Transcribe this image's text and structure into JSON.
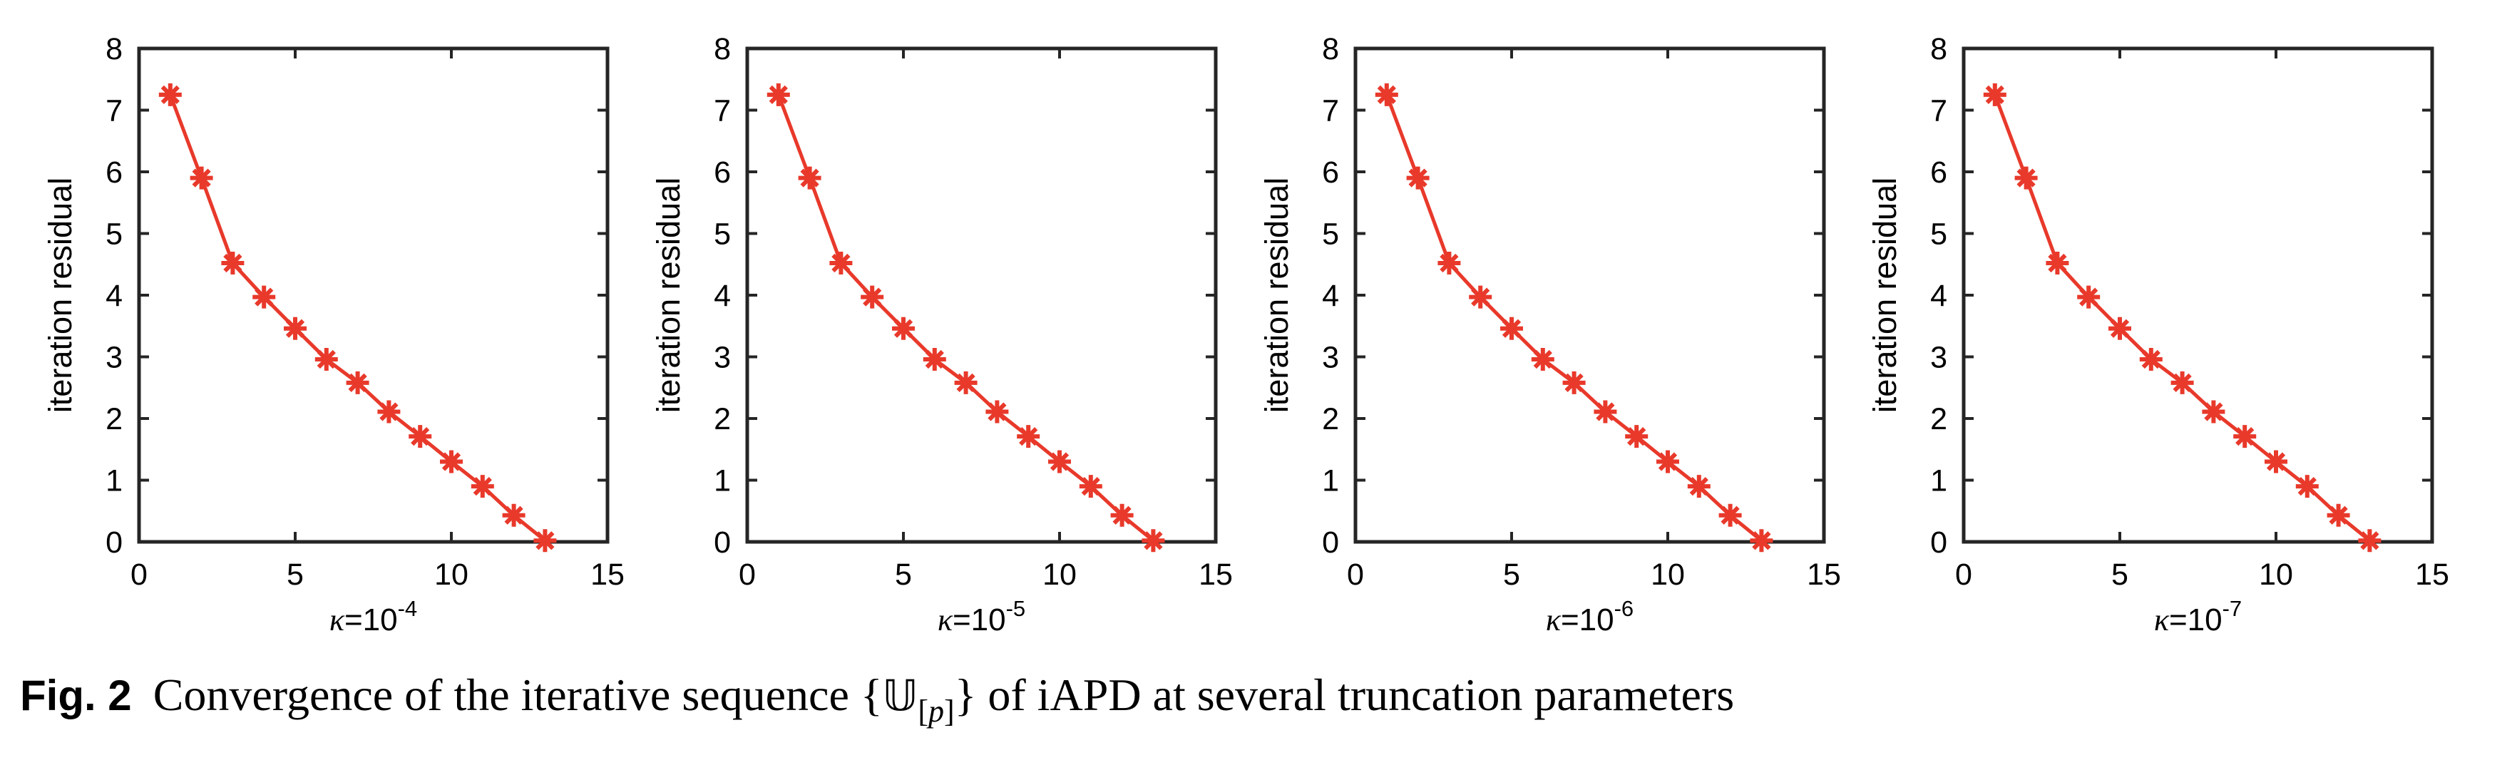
{
  "figure": {
    "caption": {
      "label": "Fig. 2",
      "part1": "Convergence of the iterative sequence {",
      "u_char": "𝕌",
      "sub_open": "[",
      "sub_p": "p",
      "sub_close": "]",
      "part2": "} of iAPD at several truncation parameters"
    }
  },
  "chart_data": {
    "type": "line",
    "title": "",
    "ylabel": "iteration residual",
    "x": [
      1,
      2,
      3,
      4,
      5,
      6,
      7,
      8,
      9,
      10,
      11,
      12,
      13
    ],
    "series": [
      {
        "name": "iteration residual",
        "values": [
          7.25,
          5.9,
          4.52,
          3.97,
          3.46,
          2.96,
          2.58,
          2.11,
          1.71,
          1.3,
          0.9,
          0.43,
          0.02
        ]
      }
    ],
    "xlim": [
      0,
      15
    ],
    "ylim": [
      0,
      8
    ],
    "xticks": [
      0,
      5,
      10,
      15
    ],
    "yticks": [
      0,
      1,
      2,
      3,
      4,
      5,
      6,
      7,
      8
    ],
    "grid": false,
    "legend": "none",
    "marker": "asterisk",
    "series_color": "#e8392b",
    "axis_color": "#252525",
    "text_color": "#000000",
    "subplots": [
      {
        "id": "kappa-1e-4",
        "kappa": "κ",
        "base": "=10",
        "exp": "-4"
      },
      {
        "id": "kappa-1e-5",
        "kappa": "κ",
        "base": "=10",
        "exp": "-5"
      },
      {
        "id": "kappa-1e-6",
        "kappa": "κ",
        "base": "=10",
        "exp": "-6"
      },
      {
        "id": "kappa-1e-7",
        "kappa": "κ",
        "base": "=10",
        "exp": "-7"
      }
    ]
  }
}
